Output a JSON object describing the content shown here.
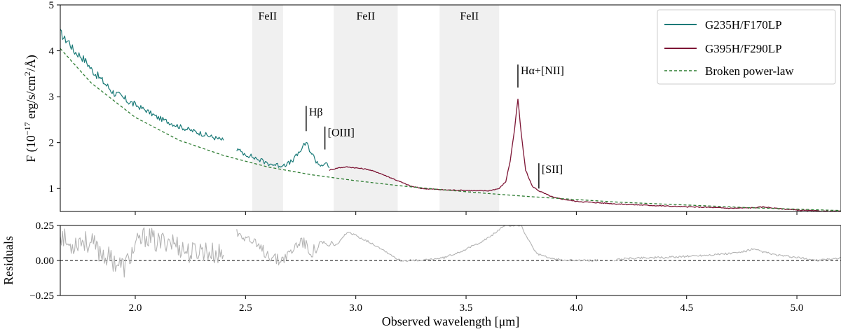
{
  "chart_data": {
    "type": "line",
    "colors": {
      "g235h": "#1a7a78",
      "g395h": "#7d1535",
      "powerlaw": "#2e7d32",
      "residual": "#b3b3b3",
      "feii_band": "#f0f0f0"
    },
    "top_panel": {
      "ylabel_prefix": "F (10",
      "ylabel_exp": "−17",
      "ylabel_mid": " erg/s/cm",
      "ylabel_exp2": "2",
      "ylabel_suffix": "/Å)",
      "xlim": [
        1.66,
        5.2
      ],
      "ylim": [
        0.5,
        5.0
      ],
      "yticks": [
        "1",
        "2",
        "3",
        "4",
        "5"
      ],
      "ytick_values": [
        1,
        2,
        3,
        4,
        5
      ],
      "feii_bands": [
        {
          "label": "FeII",
          "range": [
            2.53,
            2.67
          ]
        },
        {
          "label": "FeII",
          "range": [
            2.9,
            3.19
          ]
        },
        {
          "label": "FeII",
          "range": [
            3.38,
            3.65
          ]
        }
      ],
      "line_annotations": [
        {
          "label": "Hβ",
          "x": 2.775,
          "y0": 2.25,
          "y1": 2.8
        },
        {
          "label": "[OIII]",
          "x": 2.86,
          "y0": 1.85,
          "y1": 2.35
        },
        {
          "label": "Hα+[NII]",
          "x": 3.735,
          "y0": 3.2,
          "y1": 3.7
        },
        {
          "label": "[SII]",
          "x": 3.83,
          "y0": 1.0,
          "y1": 1.55
        }
      ],
      "powerlaw": {
        "name": "Broken power-law",
        "x": [
          1.66,
          1.8,
          2.0,
          2.2,
          2.4,
          2.6,
          2.8,
          3.0,
          3.2,
          3.4,
          3.6,
          3.8,
          4.0,
          4.2,
          4.4,
          4.6,
          4.8,
          5.0,
          5.2
        ],
        "y": [
          4.05,
          3.3,
          2.55,
          2.05,
          1.72,
          1.47,
          1.3,
          1.17,
          1.06,
          0.97,
          0.89,
          0.82,
          0.76,
          0.7,
          0.66,
          0.62,
          0.58,
          0.55,
          0.52
        ]
      },
      "series": [
        {
          "name": "G235H/F170LP",
          "segments": [
            {
              "x": [
                1.66,
                1.68,
                1.7,
                1.72,
                1.75,
                1.78,
                1.8,
                1.83,
                1.86,
                1.9,
                1.95,
                2.0,
                2.05,
                2.1,
                2.15,
                2.2,
                2.25,
                2.3,
                2.35,
                2.4
              ],
              "y": [
                4.4,
                4.25,
                4.2,
                4.0,
                3.9,
                3.75,
                3.6,
                3.45,
                3.3,
                3.1,
                2.95,
                2.82,
                2.7,
                2.55,
                2.45,
                2.35,
                2.27,
                2.2,
                2.12,
                2.05
              ]
            },
            {
              "x": [
                2.46,
                2.5,
                2.55,
                2.6,
                2.65,
                2.7,
                2.73,
                2.76,
                2.775,
                2.79,
                2.82,
                2.84,
                2.86,
                2.88
              ],
              "y": [
                1.85,
                1.75,
                1.65,
                1.55,
                1.5,
                1.55,
                1.7,
                1.9,
                2.0,
                1.85,
                1.6,
                1.5,
                1.55,
                1.45
              ]
            }
          ]
        },
        {
          "name": "G395H/F290LP",
          "segments": [
            {
              "x": [
                2.88,
                2.92,
                2.96,
                3.0,
                3.05,
                3.1,
                3.15,
                3.2,
                3.25,
                3.3,
                3.4,
                3.5,
                3.55,
                3.6,
                3.65,
                3.68,
                3.7,
                3.72,
                3.735,
                3.75,
                3.77,
                3.8,
                3.83,
                3.87,
                3.9,
                4.0,
                4.1,
                4.2,
                4.3,
                4.4,
                4.5,
                4.6,
                4.7,
                4.8,
                4.85,
                4.9,
                5.0,
                5.1,
                5.2
              ],
              "y": [
                1.4,
                1.45,
                1.47,
                1.45,
                1.42,
                1.35,
                1.25,
                1.15,
                1.05,
                1.0,
                0.97,
                0.96,
                0.95,
                0.95,
                1.0,
                1.15,
                1.6,
                2.3,
                2.95,
                2.2,
                1.4,
                1.05,
                0.95,
                0.86,
                0.8,
                0.72,
                0.69,
                0.66,
                0.64,
                0.62,
                0.6,
                0.59,
                0.57,
                0.58,
                0.6,
                0.57,
                0.53,
                0.51,
                0.5
              ]
            }
          ]
        }
      ],
      "legend_position": "top-right"
    },
    "bottom_panel": {
      "ylabel": "Residuals",
      "ylim": [
        -0.25,
        0.25
      ],
      "yticks": [
        "−0.25",
        "0.00",
        "0.25"
      ],
      "ytick_values": [
        -0.25,
        0.0,
        0.25
      ],
      "zero_line": 0.0,
      "residual_segments": [
        {
          "x": [
            1.66,
            1.7,
            1.75,
            1.8,
            1.85,
            1.9,
            1.95,
            2.0,
            2.05,
            2.1,
            2.15,
            2.2,
            2.25,
            2.3,
            2.35,
            2.4
          ],
          "y": [
            0.2,
            0.1,
            0.15,
            0.12,
            0.05,
            0.0,
            -0.05,
            0.1,
            0.18,
            0.12,
            0.15,
            0.1,
            0.05,
            0.08,
            0.05,
            0.04
          ]
        },
        {
          "x": [
            2.46,
            2.5,
            2.55,
            2.6,
            2.65,
            2.7,
            2.75,
            2.8,
            2.85,
            2.88,
            2.92,
            2.96,
            3.0,
            3.05,
            3.1,
            3.15,
            3.2,
            3.3,
            3.4,
            3.5,
            3.55,
            3.6,
            3.65,
            3.68,
            3.7,
            3.72,
            3.735,
            3.75,
            3.78,
            3.82,
            3.87,
            3.9,
            4.0,
            4.1
          ],
          "y": [
            0.2,
            0.18,
            0.1,
            0.05,
            0.0,
            0.05,
            0.15,
            0.06,
            0.12,
            0.1,
            0.12,
            0.2,
            0.18,
            0.14,
            0.1,
            0.05,
            0.0,
            0.0,
            0.02,
            0.08,
            0.12,
            0.16,
            0.22,
            0.25,
            0.25,
            0.25,
            0.25,
            0.25,
            0.15,
            0.05,
            0.02,
            0.01,
            0.0,
            0.0
          ]
        },
        {
          "x": [
            4.17,
            4.2,
            4.3,
            4.4,
            4.5,
            4.6,
            4.7,
            4.75,
            4.8,
            4.85,
            4.9,
            5.0,
            5.1,
            5.2
          ],
          "y": [
            0.0,
            0.01,
            0.02,
            0.02,
            0.03,
            0.04,
            0.05,
            0.06,
            0.08,
            0.06,
            0.04,
            0.02,
            0.0,
            0.02
          ]
        }
      ]
    },
    "xlabel": "Observed wavelength [μm]",
    "xticks": [
      "2.0",
      "2.5",
      "3.0",
      "3.5",
      "4.0",
      "4.5",
      "5.0"
    ],
    "xtick_values": [
      2.0,
      2.5,
      3.0,
      3.5,
      4.0,
      4.5,
      5.0
    ]
  }
}
